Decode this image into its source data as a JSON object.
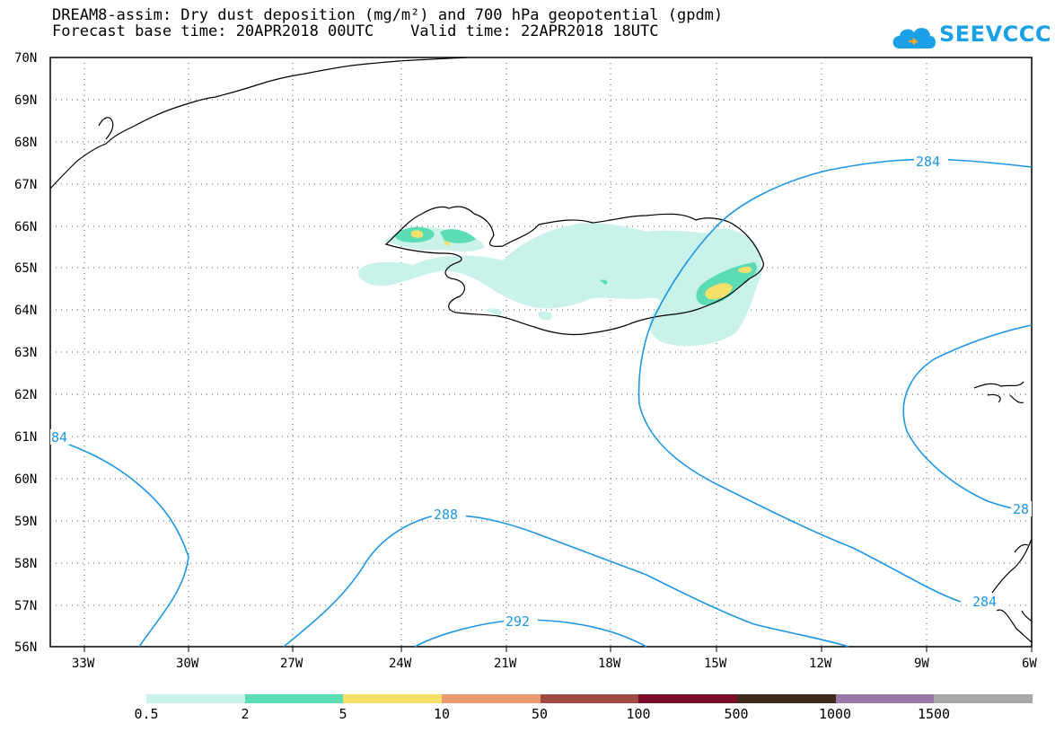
{
  "header": {
    "title_line1": "DREAM8-assim: Dry dust deposition (mg/m²) and 700 hPa geopotential (gpdm)",
    "title_line2": "Forecast base time: 20APR2018 00UTC    Valid time: 22APR2018 18UTC"
  },
  "logo": {
    "text": "SEEVCCC",
    "icon": "cloud-logo-icon",
    "color": "#1aa0e6"
  },
  "axes": {
    "lat_labels": [
      "70N",
      "69N",
      "68N",
      "67N",
      "66N",
      "65N",
      "64N",
      "63N",
      "62N",
      "61N",
      "60N",
      "59N",
      "58N",
      "57N",
      "56N"
    ],
    "lon_labels": [
      "33W",
      "30W",
      "27W",
      "24W",
      "21W",
      "18W",
      "15W",
      "12W",
      "9W",
      "6W"
    ],
    "grid": "dotted"
  },
  "contours": {
    "color": "#1e96e6",
    "labels": [
      "284",
      "84",
      "288",
      "292",
      "28",
      "284"
    ]
  },
  "legend": {
    "colors": [
      "#c8f2ea",
      "#5cdcb4",
      "#f5e16a",
      "#ec9a72",
      "#a04a44",
      "#7a0f28",
      "#3e2a1a",
      "#9a78a6",
      "#a8a8a8"
    ],
    "labels": [
      "0.5",
      "2",
      "5",
      "10",
      "50",
      "100",
      "500",
      "1000",
      "1500"
    ]
  }
}
